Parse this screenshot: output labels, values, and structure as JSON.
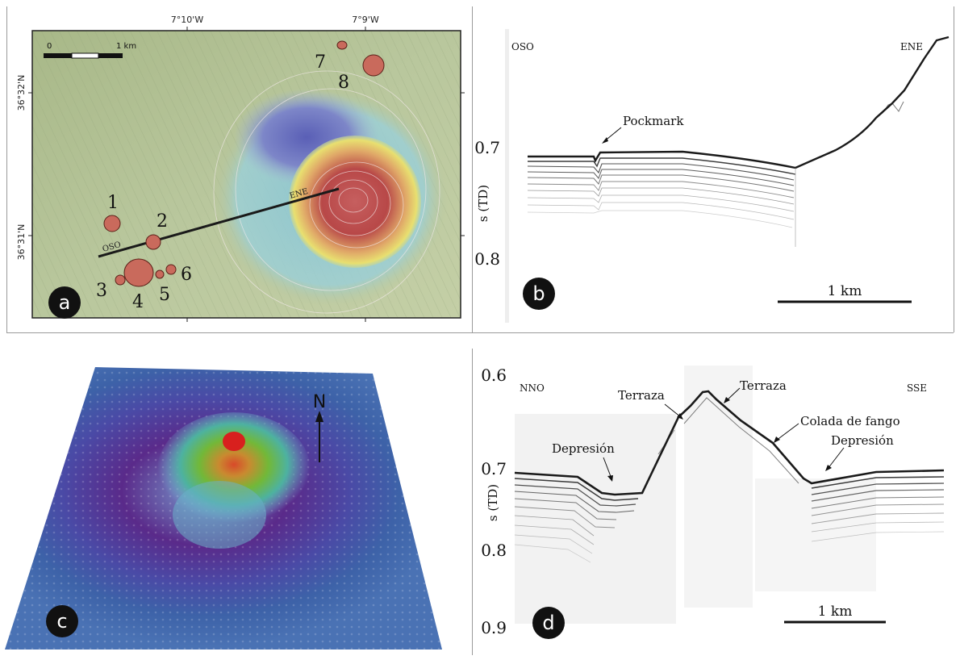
{
  "panels": {
    "a": {
      "label": "a",
      "lon_labels": [
        "7°10'W",
        "7°9'W"
      ],
      "lat_labels": [
        "36°32'N",
        "36°31'N"
      ],
      "scale_labels": [
        "0",
        "1 km"
      ],
      "profile_labels": [
        "OSO",
        "ENE"
      ],
      "pockmark_labels": [
        "1",
        "2",
        "3",
        "4",
        "5",
        "6",
        "7",
        "8"
      ]
    },
    "b": {
      "label": "b",
      "left_label": "OSO",
      "right_label": "ENE",
      "annotation": "Pockmark",
      "y_axis_label": "s (TD)",
      "y_ticks": [
        "0.7",
        "0.8"
      ],
      "scale_label": "1 km"
    },
    "c": {
      "label": "c",
      "north_label": "N"
    },
    "d": {
      "label": "d",
      "left_label": "NNO",
      "right_label": "SSE",
      "annotations": [
        "Terraza",
        "Terraza",
        "Colada de fango",
        "Depresión",
        "Depresión"
      ],
      "y_axis_label": "s (TD)",
      "y_ticks": [
        "0.6",
        "0.7",
        "0.8",
        "0.9"
      ],
      "scale_label": "1 km"
    }
  },
  "colors": {
    "map_background": "#b7c59a",
    "volcano_peak": "#c45a5a",
    "depression_blue": "#6a7fc0",
    "pockmark_fill": "#c86a5a",
    "bathymetry_3d_deep": "#3d62a8",
    "bathymetry_3d_ring": "#5a2a8a",
    "seismic_ink": "#1a1a1a"
  }
}
